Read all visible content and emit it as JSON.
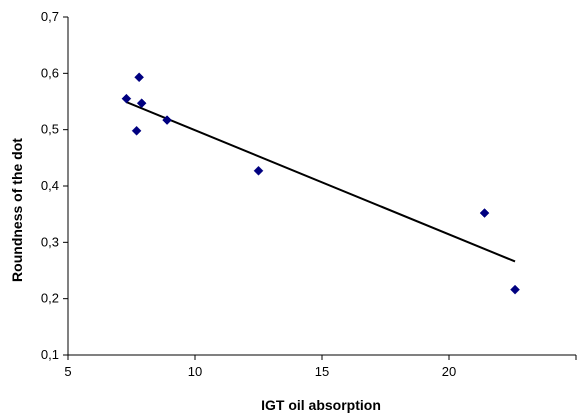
{
  "chart_data": {
    "type": "scatter",
    "title": "",
    "xlabel": "IGT oil absorption",
    "ylabel": "Roundness of the dot",
    "xlim": [
      5,
      25
    ],
    "ylim": [
      0.1,
      0.7
    ],
    "x_ticks": [
      "5",
      "10",
      "15",
      "20"
    ],
    "y_ticks": [
      "0,1",
      "0,2",
      "0,3",
      "0,4",
      "0,5",
      "0,6",
      "0,7"
    ],
    "grid": false,
    "legend": "none",
    "series": [
      {
        "points": [
          {
            "x": 7.3,
            "y": 0.555
          },
          {
            "x": 7.8,
            "y": 0.593
          },
          {
            "x": 7.9,
            "y": 0.547
          },
          {
            "x": 7.7,
            "y": 0.498
          },
          {
            "x": 8.9,
            "y": 0.517
          },
          {
            "x": 12.5,
            "y": 0.427
          },
          {
            "x": 21.4,
            "y": 0.352
          },
          {
            "x": 22.6,
            "y": 0.216
          }
        ],
        "marker": "diamond",
        "color": "#000080"
      }
    ],
    "trendline": {
      "type": "linear",
      "from": {
        "x": 7.3,
        "y": 0.549
      },
      "to": {
        "x": 22.6,
        "y": 0.266
      },
      "color": "#000000"
    }
  }
}
